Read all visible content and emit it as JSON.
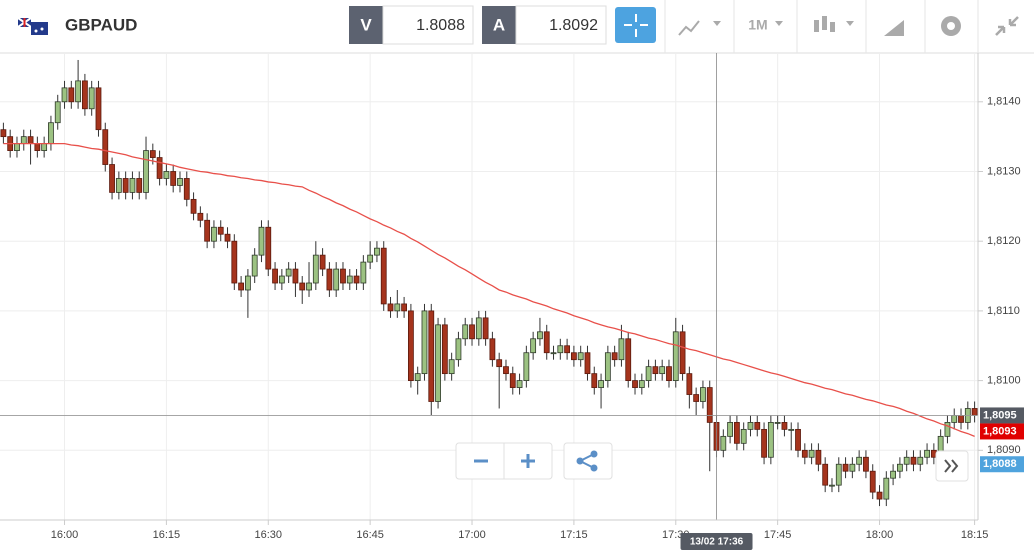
{
  "toolbar": {
    "symbol": "GBPAUD",
    "bid_label": "V",
    "bid": "1.8088",
    "ask_label": "A",
    "ask": "1.8092",
    "timeframe": "1M"
  },
  "chart_data": {
    "type": "candlestick",
    "categories": [
      null,
      null,
      null,
      null,
      null,
      null,
      null,
      null,
      null,
      "16:00",
      null,
      null,
      null,
      null,
      null,
      null,
      null,
      null,
      null,
      null,
      null,
      null,
      null,
      null,
      "16:15",
      null,
      null,
      null,
      null,
      null,
      null,
      null,
      null,
      null,
      null,
      null,
      null,
      null,
      null,
      "16:30",
      null,
      null,
      null,
      null,
      null,
      null,
      null,
      null,
      null,
      null,
      null,
      null,
      null,
      null,
      "16:45",
      null,
      null,
      null,
      null,
      null,
      null,
      null,
      null,
      null,
      null,
      null,
      null,
      null,
      null,
      "17:00",
      null,
      null,
      null,
      null,
      null,
      null,
      null,
      null,
      null,
      null,
      null,
      null,
      null,
      null,
      "17:15",
      null,
      null,
      null,
      null,
      null,
      null,
      null,
      null,
      null,
      null,
      null,
      null,
      null,
      null,
      "17:30",
      null,
      null,
      null,
      null,
      null,
      null,
      null,
      null,
      null,
      null,
      null,
      null,
      null,
      null,
      "17:45",
      null,
      null,
      null,
      null,
      null,
      null,
      null,
      null,
      null,
      null,
      null,
      null,
      null,
      null,
      "18:00",
      null,
      null,
      null,
      null,
      null,
      null,
      null,
      null,
      null,
      null,
      null,
      null,
      null,
      "18:15"
    ],
    "open": [
      1.8136,
      1.8135,
      1.8133,
      1.8134,
      1.8135,
      1.8134,
      1.8133,
      1.8134,
      1.8137,
      1.814,
      1.8142,
      1.814,
      1.8143,
      1.8139,
      1.8142,
      1.8136,
      1.8131,
      1.8127,
      1.8129,
      1.8127,
      1.8129,
      1.8127,
      1.8133,
      1.8132,
      1.8129,
      1.813,
      1.8128,
      1.8129,
      1.8126,
      1.8124,
      1.8123,
      1.812,
      1.8122,
      1.8121,
      1.812,
      1.8114,
      1.8113,
      1.8115,
      1.8118,
      1.8122,
      1.8116,
      1.8114,
      1.8115,
      1.8116,
      1.8114,
      1.8113,
      1.8114,
      1.8118,
      1.8116,
      1.8113,
      1.8116,
      1.8114,
      1.8115,
      1.8114,
      1.8117,
      1.8118,
      1.8119,
      1.8111,
      1.811,
      1.8111,
      1.811,
      1.81,
      1.8101,
      1.811,
      1.8097,
      1.8108,
      1.8101,
      1.8103,
      1.8106,
      1.8108,
      1.8106,
      1.8109,
      1.8106,
      1.8103,
      1.8102,
      1.8101,
      1.8099,
      1.81,
      1.8104,
      1.8106,
      1.8107,
      1.8104,
      1.8104,
      1.8105,
      1.8104,
      1.8103,
      1.8104,
      1.8101,
      1.8099,
      1.81,
      1.8104,
      1.8103,
      1.8106,
      1.81,
      1.8099,
      1.81,
      1.8102,
      1.8101,
      1.8102,
      1.81,
      1.8107,
      1.8101,
      1.8098,
      1.8097,
      1.8099,
      1.8094,
      1.809,
      1.8092,
      1.8094,
      1.8091,
      1.8093,
      1.8094,
      1.8093,
      1.8089,
      1.8094,
      1.8094,
      1.8093,
      1.8093,
      1.809,
      1.8089,
      1.809,
      1.8088,
      1.8085,
      1.8085,
      1.8088,
      1.8087,
      1.8088,
      1.8089,
      1.8087,
      1.8084,
      1.8083,
      1.8086,
      1.8087,
      1.8088,
      1.8089,
      1.8088,
      1.8089,
      1.809,
      1.8089,
      1.8092,
      1.8094,
      1.8095,
      1.8094,
      1.8096
    ],
    "high": [
      1.8137,
      1.8136,
      1.8135,
      1.8136,
      1.8136,
      1.8135,
      1.8135,
      1.8138,
      1.8141,
      1.8143,
      1.8143,
      1.8146,
      1.8144,
      1.8143,
      1.8143,
      1.8137,
      1.8132,
      1.813,
      1.813,
      1.813,
      1.813,
      1.8135,
      1.8134,
      1.8133,
      1.8131,
      1.8131,
      1.813,
      1.813,
      1.8127,
      1.8125,
      1.8124,
      1.8123,
      1.8123,
      1.8122,
      1.8121,
      1.8115,
      1.8116,
      1.8119,
      1.8123,
      1.8123,
      1.8117,
      1.8116,
      1.8117,
      1.8117,
      1.8115,
      1.8117,
      1.812,
      1.8119,
      1.8117,
      1.8117,
      1.8117,
      1.8116,
      1.8116,
      1.8118,
      1.812,
      1.812,
      1.812,
      1.8112,
      1.8113,
      1.8112,
      1.8111,
      1.8102,
      1.8111,
      1.8111,
      1.8109,
      1.8109,
      1.8104,
      1.8107,
      1.8109,
      1.8109,
      1.811,
      1.811,
      1.8107,
      1.8104,
      1.8103,
      1.8102,
      1.8101,
      1.8105,
      1.8107,
      1.8109,
      1.8108,
      1.8105,
      1.8106,
      1.8106,
      1.8105,
      1.8105,
      1.8105,
      1.8102,
      1.8101,
      1.8105,
      1.8105,
      1.8108,
      1.8107,
      1.8101,
      1.8101,
      1.8103,
      1.8103,
      1.8103,
      1.8103,
      1.8109,
      1.8108,
      1.8102,
      1.8099,
      1.81,
      1.81,
      1.8095,
      1.8093,
      1.8095,
      1.8095,
      1.8094,
      1.8095,
      1.8095,
      1.8094,
      1.8095,
      1.8095,
      1.8095,
      1.8094,
      1.8094,
      1.8091,
      1.8091,
      1.8091,
      1.8089,
      1.8086,
      1.8089,
      1.8089,
      1.8089,
      1.809,
      1.809,
      1.8088,
      1.8085,
      1.8087,
      1.8088,
      1.8089,
      1.809,
      1.809,
      1.809,
      1.8091,
      1.8091,
      1.8093,
      1.8095,
      1.8096,
      1.8096,
      1.8097,
      1.8097
    ],
    "low": [
      1.8134,
      1.8132,
      1.8132,
      1.8133,
      1.8131,
      1.8132,
      1.8132,
      1.8133,
      1.8136,
      1.8139,
      1.8139,
      1.8139,
      1.8138,
      1.8138,
      1.8135,
      1.813,
      1.8126,
      1.8126,
      1.8126,
      1.8126,
      1.8126,
      1.8126,
      1.8131,
      1.8128,
      1.8128,
      1.8127,
      1.8127,
      1.8125,
      1.8123,
      1.8122,
      1.8119,
      1.8119,
      1.812,
      1.8119,
      1.8113,
      1.8112,
      1.8109,
      1.8114,
      1.8117,
      1.8115,
      1.8113,
      1.8113,
      1.8114,
      1.8112,
      1.8111,
      1.8112,
      1.8113,
      1.8115,
      1.8112,
      1.8112,
      1.8113,
      1.8113,
      1.8113,
      1.8113,
      1.8116,
      1.8117,
      1.811,
      1.8109,
      1.8109,
      1.8109,
      1.8099,
      1.8098,
      1.81,
      1.8095,
      1.8096,
      1.81,
      1.81,
      1.8102,
      1.8105,
      1.8105,
      1.8105,
      1.8105,
      1.8102,
      1.8096,
      1.81,
      1.8098,
      1.8098,
      1.8099,
      1.8103,
      1.8105,
      1.8103,
      1.8103,
      1.8103,
      1.8103,
      1.8102,
      1.8102,
      1.81,
      1.8098,
      1.8096,
      1.8099,
      1.8102,
      1.8102,
      1.8099,
      1.8098,
      1.8098,
      1.8099,
      1.81,
      1.81,
      1.8099,
      1.8099,
      1.81,
      1.8096,
      1.8095,
      1.8096,
      1.8087,
      1.8089,
      1.8089,
      1.8091,
      1.809,
      1.809,
      1.8092,
      1.8092,
      1.8088,
      1.8088,
      1.8093,
      1.8092,
      1.809,
      1.8089,
      1.8088,
      1.8088,
      1.8087,
      1.8084,
      1.8084,
      1.8084,
      1.8086,
      1.8086,
      1.8087,
      1.8086,
      1.8083,
      1.8082,
      1.8082,
      1.8085,
      1.8086,
      1.8087,
      1.8087,
      1.8087,
      1.8088,
      1.8088,
      1.8088,
      1.8091,
      1.8093,
      1.8093,
      1.8093,
      1.8094
    ],
    "close": [
      1.8135,
      1.8133,
      1.8134,
      1.8135,
      1.8134,
      1.8133,
      1.8134,
      1.8137,
      1.814,
      1.8142,
      1.814,
      1.8143,
      1.8139,
      1.8142,
      1.8136,
      1.8131,
      1.8127,
      1.8129,
      1.8127,
      1.8129,
      1.8127,
      1.8133,
      1.8132,
      1.8129,
      1.813,
      1.8128,
      1.8129,
      1.8126,
      1.8124,
      1.8123,
      1.812,
      1.8122,
      1.8121,
      1.812,
      1.8114,
      1.8113,
      1.8115,
      1.8118,
      1.8122,
      1.8116,
      1.8114,
      1.8115,
      1.8116,
      1.8114,
      1.8113,
      1.8114,
      1.8118,
      1.8116,
      1.8113,
      1.8116,
      1.8114,
      1.8115,
      1.8114,
      1.8117,
      1.8118,
      1.8119,
      1.8111,
      1.811,
      1.8111,
      1.811,
      1.81,
      1.8101,
      1.811,
      1.8097,
      1.8108,
      1.8101,
      1.8103,
      1.8106,
      1.8108,
      1.8106,
      1.8109,
      1.8106,
      1.8103,
      1.8102,
      1.8101,
      1.8099,
      1.81,
      1.8104,
      1.8106,
      1.8107,
      1.8104,
      1.8104,
      1.8105,
      1.8104,
      1.8103,
      1.8104,
      1.8101,
      1.8099,
      1.81,
      1.8104,
      1.8103,
      1.8106,
      1.81,
      1.8099,
      1.81,
      1.8102,
      1.8101,
      1.8102,
      1.81,
      1.8107,
      1.8101,
      1.8098,
      1.8097,
      1.8099,
      1.8094,
      1.809,
      1.8092,
      1.8094,
      1.8091,
      1.8093,
      1.8094,
      1.8093,
      1.8089,
      1.8094,
      1.8094,
      1.8093,
      1.8093,
      1.809,
      1.8089,
      1.809,
      1.8088,
      1.8085,
      1.8085,
      1.8088,
      1.8087,
      1.8088,
      1.8089,
      1.8087,
      1.8084,
      1.8083,
      1.8086,
      1.8087,
      1.8088,
      1.8089,
      1.8088,
      1.8089,
      1.809,
      1.8089,
      1.8092,
      1.8094,
      1.8095,
      1.8094,
      1.8096,
      1.8095
    ],
    "moving_average": {
      "color": "#e8504a",
      "values": [
        1.8134,
        1.8134,
        1.8134,
        1.8134,
        1.8134,
        1.8134,
        1.8134,
        1.8134,
        1.8134,
        1.8134,
        1.81338,
        1.81337,
        1.81335,
        1.81333,
        1.81332,
        1.8133,
        1.81328,
        1.81326,
        1.81324,
        1.81321,
        1.81319,
        1.81317,
        1.81315,
        1.81313,
        1.81311,
        1.81309,
        1.81306,
        1.81304,
        1.81302,
        1.813,
        1.81299,
        1.81297,
        1.81296,
        1.81294,
        1.81293,
        1.81291,
        1.8129,
        1.81288,
        1.81287,
        1.81285,
        1.81284,
        1.81282,
        1.81281,
        1.81279,
        1.81278,
        1.81273,
        1.81269,
        1.81264,
        1.8126,
        1.81255,
        1.81251,
        1.81246,
        1.81242,
        1.81237,
        1.81232,
        1.81228,
        1.81223,
        1.81219,
        1.81214,
        1.8121,
        1.81204,
        1.81199,
        1.81193,
        1.81187,
        1.81181,
        1.81176,
        1.8117,
        1.81164,
        1.81159,
        1.81153,
        1.81147,
        1.81141,
        1.81136,
        1.8113,
        1.81127,
        1.81123,
        1.8112,
        1.81117,
        1.81113,
        1.8111,
        1.81107,
        1.81103,
        1.811,
        1.81097,
        1.81093,
        1.8109,
        1.81087,
        1.81083,
        1.8108,
        1.81077,
        1.81075,
        1.81072,
        1.81069,
        1.81067,
        1.81064,
        1.81061,
        1.81059,
        1.81056,
        1.81053,
        1.81051,
        1.81048,
        1.81045,
        1.81043,
        1.8104,
        1.81037,
        1.81034,
        1.81031,
        1.81029,
        1.81026,
        1.81023,
        1.8102,
        1.81017,
        1.81014,
        1.81011,
        1.81009,
        1.81006,
        1.81003,
        1.81,
        1.80997,
        1.80995,
        1.80992,
        1.80989,
        1.80987,
        1.80984,
        1.80981,
        1.80979,
        1.80976,
        1.80973,
        1.80971,
        1.80968,
        1.80965,
        1.80963,
        1.8096,
        1.80956,
        1.80953,
        1.80949,
        1.80945,
        1.80942,
        1.80938,
        1.80935,
        1.80931,
        1.80927,
        1.80924,
        1.8092
      ]
    },
    "bull_color": "#9cc282",
    "bear_color": "#a5341d",
    "ylim": [
      1.808,
      1.8147
    ],
    "yticks": [
      {
        "value": 1.809,
        "label": "1,8090"
      },
      {
        "value": 1.81,
        "label": "1,8100"
      },
      {
        "value": 1.811,
        "label": "1,8110"
      },
      {
        "value": 1.812,
        "label": "1,8120"
      },
      {
        "value": 1.813,
        "label": "1,8130"
      },
      {
        "value": 1.814,
        "label": "1,8140"
      }
    ],
    "grid": true,
    "price_labels": [
      {
        "value": 1.8095,
        "label": "1,8095",
        "color": "#555a63"
      },
      {
        "value": 1.8093,
        "label": "1,8093",
        "color": "#e00000"
      },
      {
        "value": 1.8088,
        "label": "1,8088",
        "color": "#4fa3dd"
      }
    ],
    "crosshair": {
      "label": "13/02 17:36"
    }
  }
}
